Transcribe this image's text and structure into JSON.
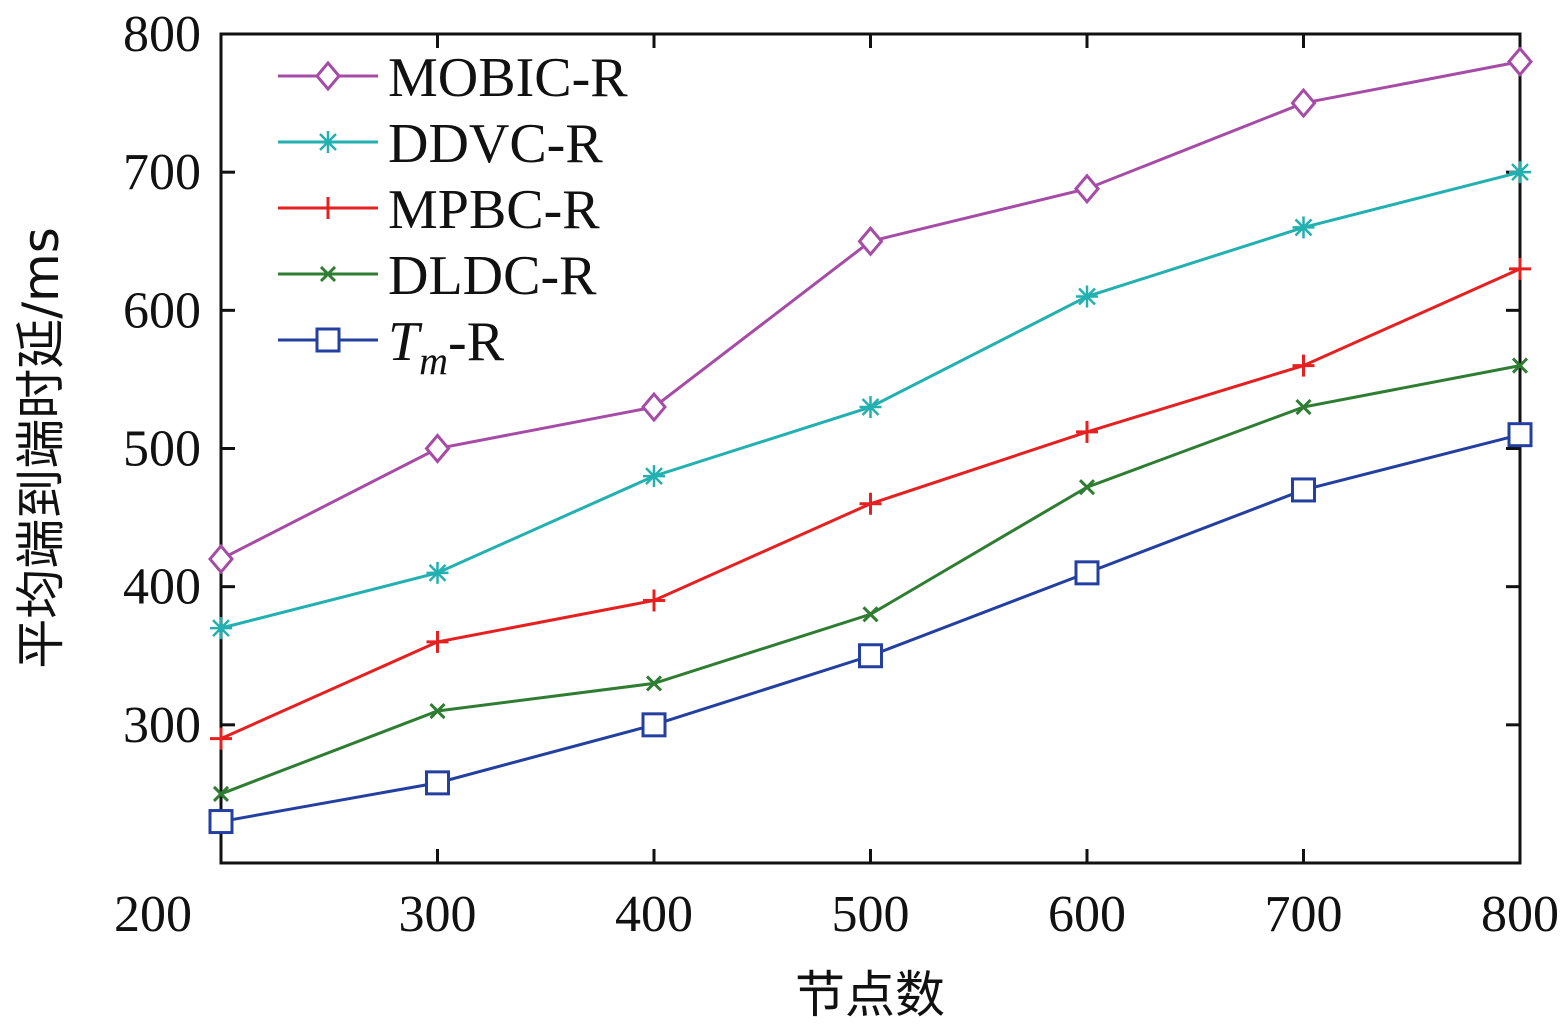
{
  "chart_data": {
    "type": "line",
    "title": "",
    "xlabel": "节点数",
    "ylabel": "平均端到端时延/ms",
    "xlim": [
      200,
      800
    ],
    "ylim": [
      200,
      800
    ],
    "x_ticks": [
      "200",
      "300",
      "400",
      "500",
      "600",
      "700",
      "800"
    ],
    "y_ticks": [
      "300",
      "400",
      "500",
      "600",
      "700",
      "800"
    ],
    "x": [
      200,
      300,
      400,
      500,
      600,
      700,
      800
    ],
    "legend_position": "top-left",
    "grid": false,
    "series": [
      {
        "name": "MOBIC-R",
        "color": "#A64CA6",
        "marker": "diamond",
        "values": [
          420,
          500,
          530,
          650,
          688,
          750,
          780
        ]
      },
      {
        "name": "DDVC-R",
        "color": "#22B0B0",
        "marker": "asterisk",
        "values": [
          370,
          410,
          480,
          530,
          610,
          660,
          700
        ]
      },
      {
        "name": "MPBC-R",
        "color": "#E62020",
        "marker": "plus",
        "values": [
          290,
          360,
          390,
          460,
          512,
          560,
          630
        ]
      },
      {
        "name": "DLDC-R",
        "color": "#2E7D32",
        "marker": "x",
        "values": [
          250,
          310,
          330,
          380,
          472,
          530,
          560
        ]
      },
      {
        "name": "-R",
        "name_prefix": "T",
        "name_sub": "m",
        "color": "#2340A0",
        "marker": "square",
        "values": [
          230,
          258,
          300,
          350,
          410,
          470,
          510
        ]
      }
    ]
  }
}
